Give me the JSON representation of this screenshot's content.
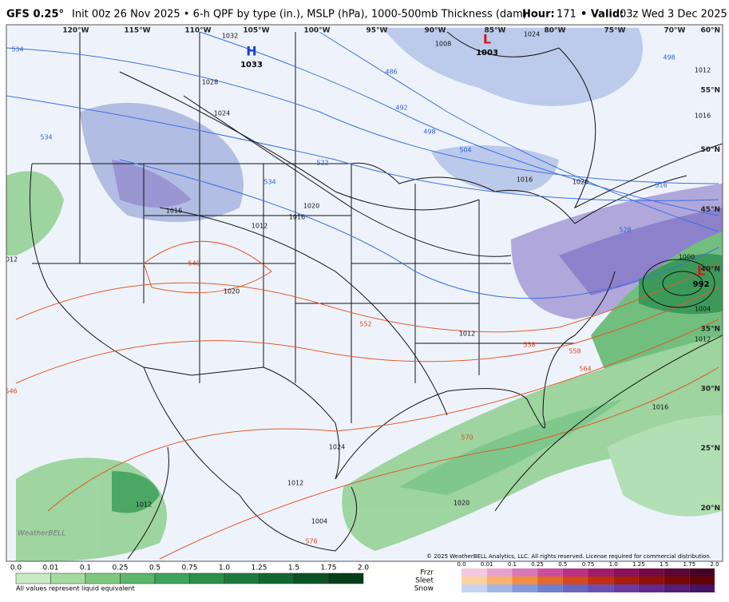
{
  "header": {
    "model": "GFS 0.25°",
    "description": "Init 00z 26 Nov 2025 • 6-h QPF by type (in.), MSLP (hPa), 1000-500mb Thickness (dam)",
    "hour_label": "Hour:",
    "hour": "171",
    "valid_label": "• Valid:",
    "valid": "03z Wed 3 Dec 2025"
  },
  "map": {
    "longitudes": [
      "120°W",
      "115°W",
      "110°W",
      "105°W",
      "100°W",
      "95°W",
      "90°W",
      "85°W",
      "80°W",
      "75°W",
      "70°W"
    ],
    "latitudes": [
      "60°N",
      "55°N",
      "50°N",
      "45°N",
      "40°N",
      "35°N",
      "30°N",
      "25°N",
      "20°N"
    ],
    "centers": [
      {
        "symbol": "H",
        "pressure": "1033"
      },
      {
        "symbol": "L",
        "pressure": "1003"
      },
      {
        "symbol": "L",
        "pressure": "992"
      }
    ],
    "isobar_labels": [
      "1032",
      "1028",
      "1024",
      "1020",
      "1016",
      "1012",
      "1016",
      "1020",
      "1008",
      "1004",
      "1000",
      "1012",
      "1016",
      "1020",
      "1024",
      "1016",
      "1012",
      "1012",
      "1012",
      "1004",
      "1016",
      "1012",
      "1020",
      "1024",
      "1012"
    ],
    "thickness_labels": [
      "534",
      "534",
      "486",
      "492",
      "498",
      "504",
      "522",
      "534",
      "516",
      "528",
      "498",
      "552",
      "558",
      "564",
      "570",
      "576",
      "546",
      "558",
      "540"
    ],
    "logo": "WeatherBELL",
    "copyright": "© 2025 WeatherBELL Analytics, LLC. All rights reserved. License required for commercial distribution."
  },
  "legend": {
    "rain_labels": [
      "0.0",
      "0.01",
      "0.1",
      "0.25",
      "0.5",
      "0.75",
      "1.0",
      "1.25",
      "1.5",
      "1.75",
      "2.0"
    ],
    "note": "All values represent liquid equivalent",
    "types": [
      "Frzr",
      "Sleet",
      "Snow"
    ],
    "type_labels": [
      "0.0",
      "0.01",
      "0.1",
      "0.25",
      "0.5",
      "0.75",
      "1.0",
      "1.25",
      "1.5",
      "1.75",
      "2.0"
    ]
  }
}
